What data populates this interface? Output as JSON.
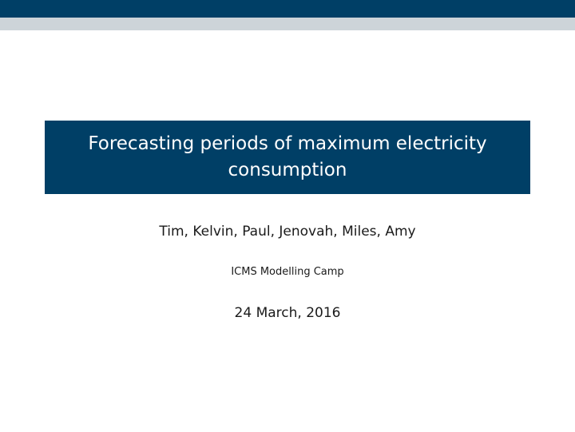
{
  "slide": {
    "title_line1": "Forecasting periods of maximum electricity",
    "title_line2": "consumption",
    "authors": "Tim, Kelvin, Paul, Jenovah, Miles, Amy",
    "institute": "ICMS Modelling Camp",
    "date": "24 March, 2016"
  },
  "colors": {
    "header_dark": "#003f66",
    "header_light": "#cdd4d9",
    "title_box": "#003f66",
    "title_text": "#ffffff",
    "body_text": "#1a1a1a"
  }
}
